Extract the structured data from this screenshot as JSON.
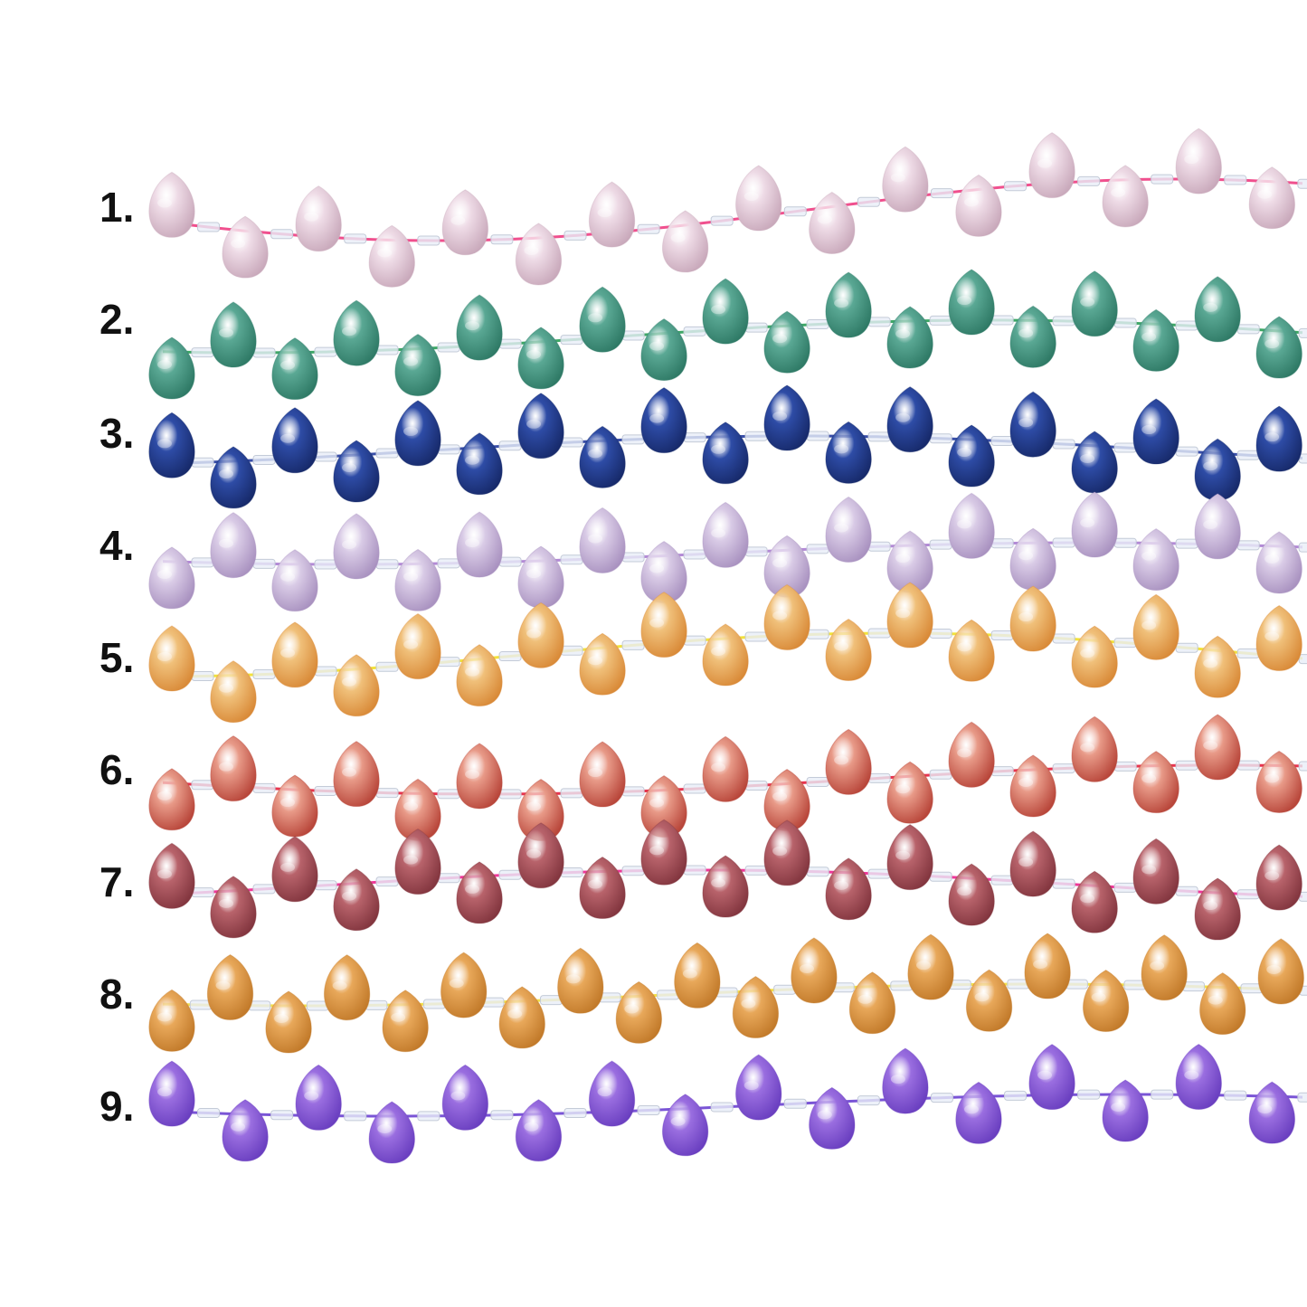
{
  "strands": [
    {
      "label": "1.",
      "cord_color": "#f0508e",
      "bead_color": "#eedbe6",
      "bead_dark": "#c9a9bb",
      "count": 16
    },
    {
      "label": "2.",
      "cord_color": "#3fa867",
      "bead_color": "#5aa894",
      "bead_dark": "#2f7a66",
      "count": 19
    },
    {
      "label": "3.",
      "cord_color": "#3a4fa8",
      "bead_color": "#2e4ca6",
      "bead_dark": "#172a6b",
      "count": 19
    },
    {
      "label": "4.",
      "cord_color": "#b38ad6",
      "bead_color": "#d9cbe6",
      "bead_dark": "#a992c0",
      "count": 19
    },
    {
      "label": "5.",
      "cord_color": "#f2e23c",
      "bead_color": "#f0c07a",
      "bead_dark": "#d98a38",
      "count": 19
    },
    {
      "label": "6.",
      "cord_color": "#e8344f",
      "bead_color": "#e89a88",
      "bead_dark": "#b8463a",
      "count": 19
    },
    {
      "label": "7.",
      "cord_color": "#f0389a",
      "bead_color": "#b8636b",
      "bead_dark": "#83363f",
      "count": 19
    },
    {
      "label": "8.",
      "cord_color": "#f4e04a",
      "bead_color": "#e8a85a",
      "bead_dark": "#c27a2a",
      "count": 20
    },
    {
      "label": "9.",
      "cord_color": "#7a55d6",
      "bead_color": "#9a6ee0",
      "bead_dark": "#6a3fc0",
      "count": 16
    }
  ]
}
